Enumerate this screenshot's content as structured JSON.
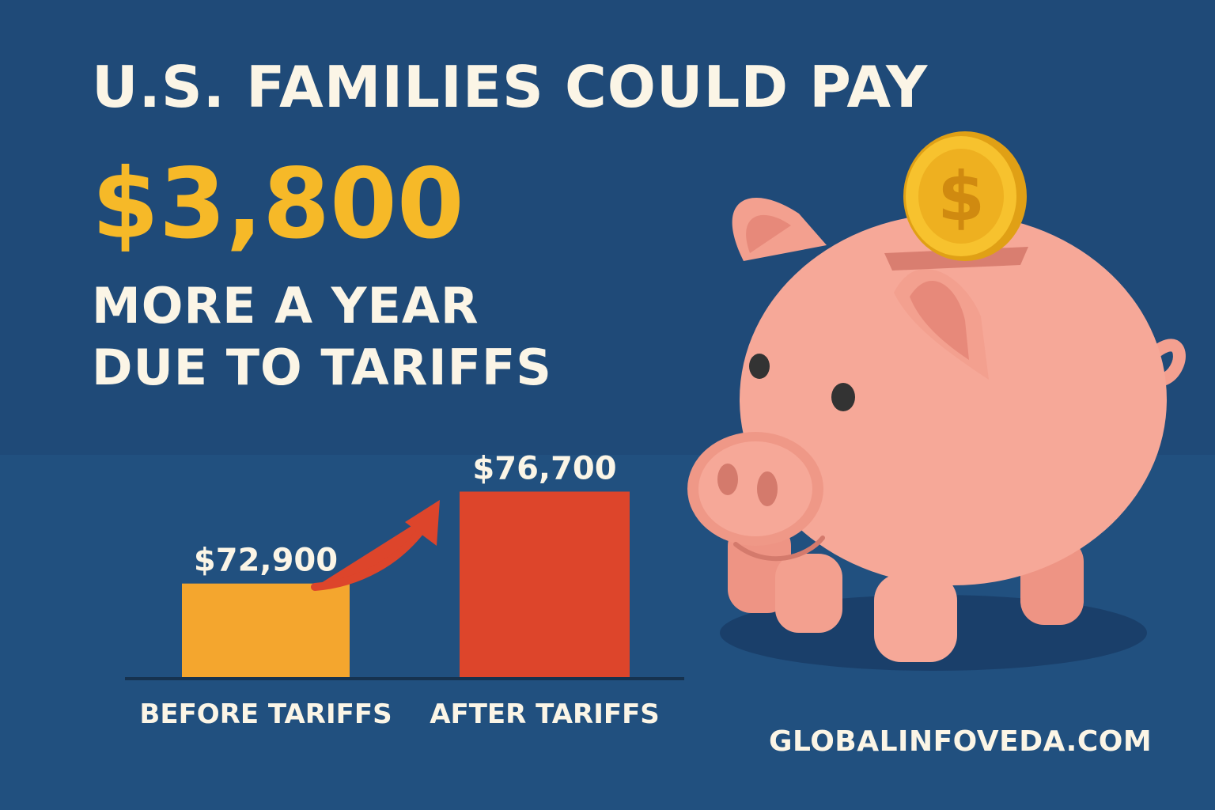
{
  "headline": {
    "line1": "U.S. FAMILIES COULD PAY",
    "amount": "$3,800",
    "line3": "MORE A YEAR",
    "line4": "DUE TO TARIFFS"
  },
  "website": "GLOBALINFOVEDA.COM",
  "colors": {
    "background": "#1f4a78",
    "accent_yellow": "#f6b928",
    "bar_before": "#f4a62e",
    "bar_after": "#dd452b",
    "arrow": "#dd452b",
    "text": "#fbf5e6"
  },
  "icons": [
    "piggy-bank-icon",
    "dollar-coin-icon",
    "trend-arrow-icon"
  ],
  "chart_data": {
    "type": "bar",
    "categories": [
      "BEFORE TARIFFS",
      "AFTER TARIFFS"
    ],
    "values": [
      72900,
      76700
    ],
    "data_labels": [
      "$72,900",
      "$76,700"
    ],
    "axis_range": [
      69000,
      77500
    ],
    "grid": false,
    "legend": "none"
  }
}
